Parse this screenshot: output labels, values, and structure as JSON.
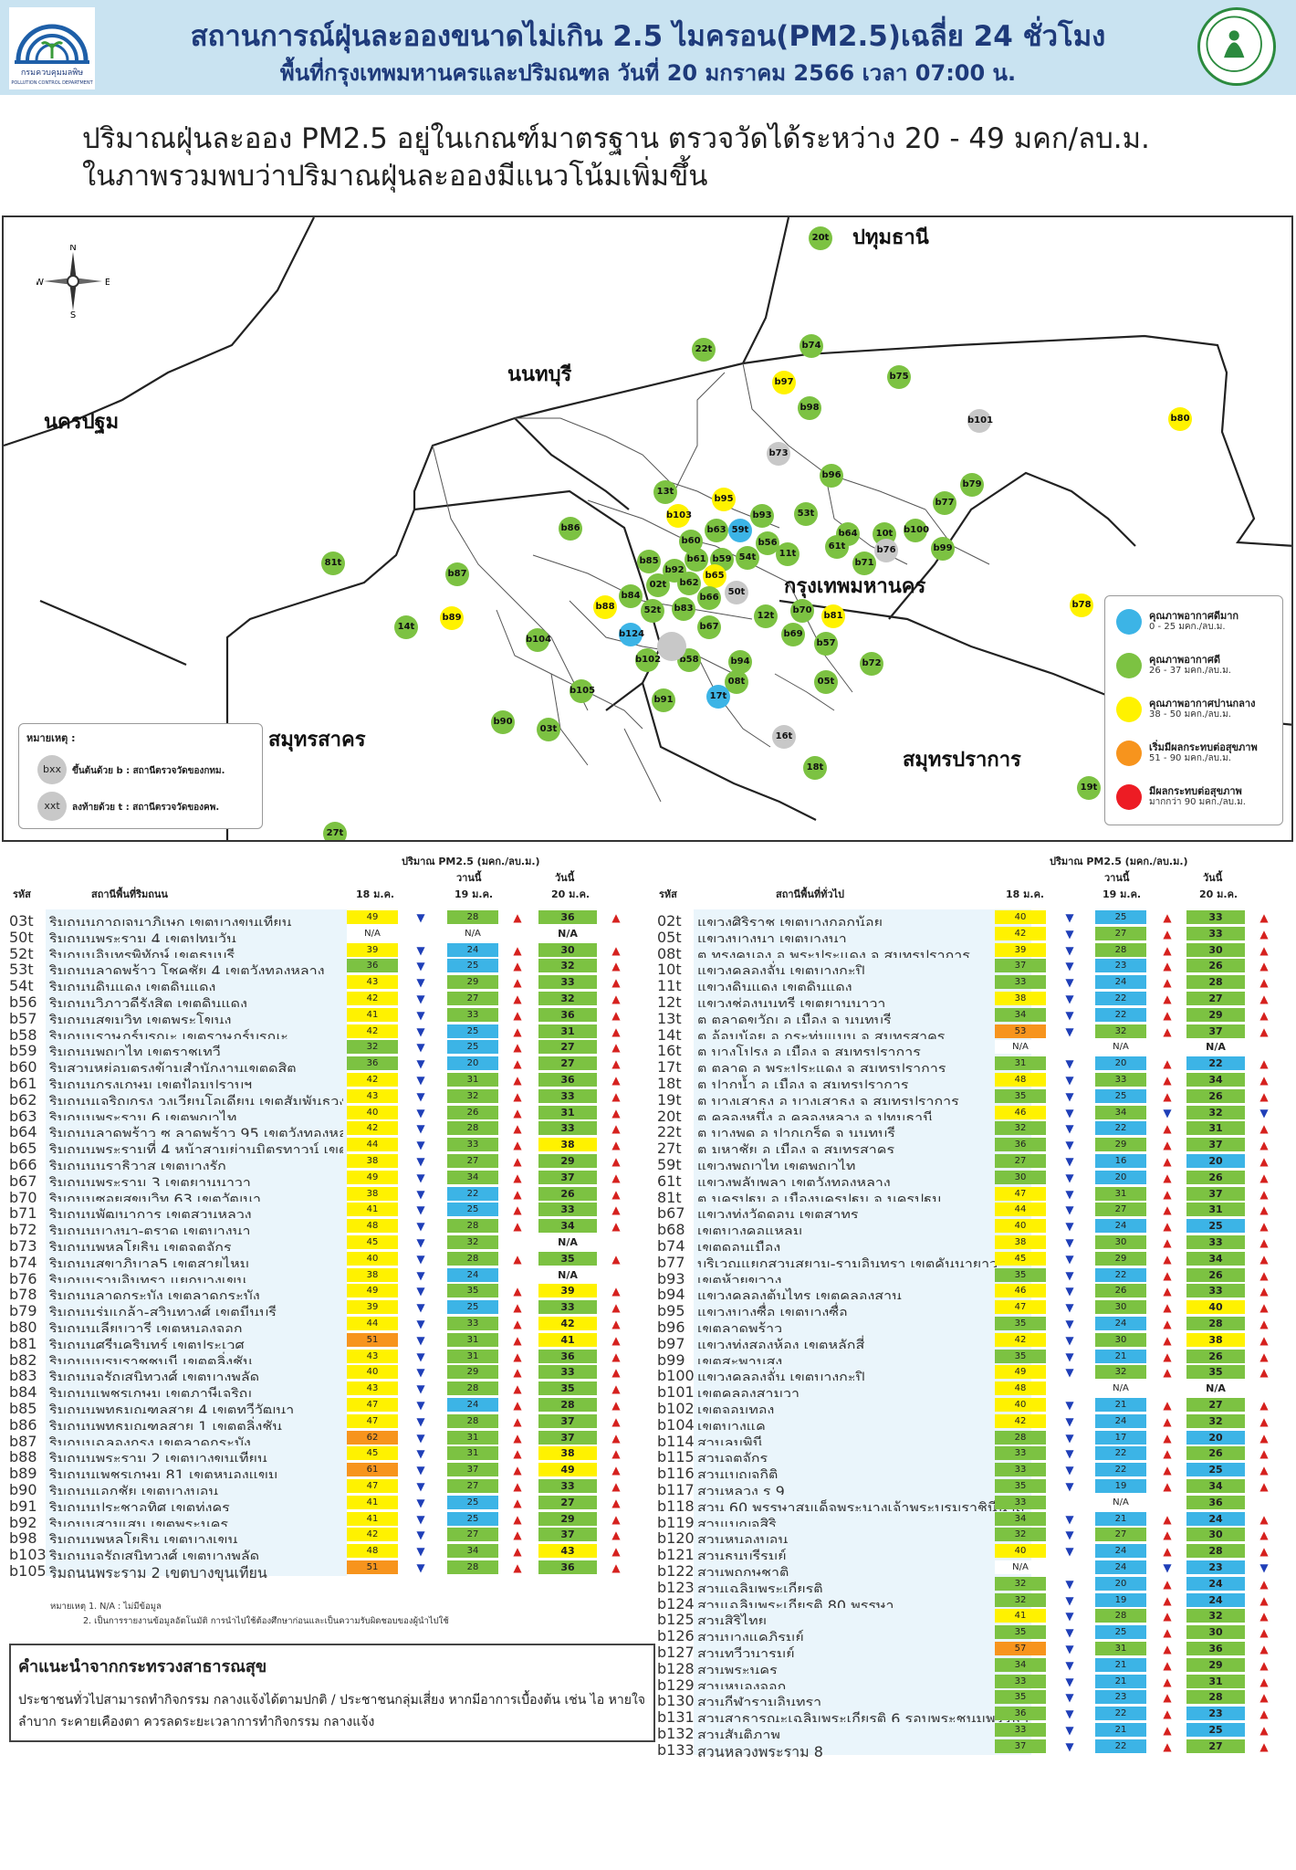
{
  "header": {
    "title": "สถานการณ์ฝุ่นละอองขนาดไม่เกิน 2.5 ไมครอน(PM2.5)เฉลี่ย 24 ชั่วโมง",
    "subtitle": "พื้นที่กรุงเทพมหานครและปริมณฑล วันที่ 20 มกราคม 2566 เวลา 07:00 น.",
    "logo_left_text": "กรมควบคุมมลพิษ",
    "logo_left_sub": "POLLUTION CONTROL DEPARTMENT"
  },
  "summary": {
    "line1": "ปริมาณฝุ่นละออง PM2.5 อยู่ในเกณฑ์มาตรฐาน ตรวจวัดได้ระหว่าง 20 - 49 มคก/ลบ.ม.",
    "line2": "ในภาพรวมพบว่าปริมาณฝุ่นละอองมีแนวโน้มเพิ่มขึ้น"
  },
  "map": {
    "provinces": [
      "ปทุมธานี",
      "นนทบุรี",
      "นครปฐม",
      "กรุงเทพมหานคร",
      "สมุทรสาคร",
      "สมุทรปราการ"
    ],
    "compass": {
      "n": "N",
      "s": "S",
      "e": "E",
      "w": "W"
    },
    "colors": {
      "blue": "#3cb4e6",
      "green": "#7cc242",
      "yellow": "#fff200",
      "orange": "#f7941d",
      "red": "#ed1c24",
      "gray": "#c8c8c8"
    },
    "markers": [
      {
        "id": "20t",
        "c": "green"
      },
      {
        "id": "22t",
        "c": "green"
      },
      {
        "id": "b74",
        "c": "green"
      },
      {
        "id": "b97",
        "c": "yellow"
      },
      {
        "id": "b98",
        "c": "green"
      },
      {
        "id": "b75",
        "c": "green"
      },
      {
        "id": "b101",
        "c": "gray"
      },
      {
        "id": "b80",
        "c": "yellow"
      },
      {
        "id": "b73",
        "c": "gray"
      },
      {
        "id": "b96",
        "c": "green"
      },
      {
        "id": "13t",
        "c": "green"
      },
      {
        "id": "b95",
        "c": "yellow"
      },
      {
        "id": "b77",
        "c": "green"
      },
      {
        "id": "b79",
        "c": "green"
      },
      {
        "id": "b103",
        "c": "yellow"
      },
      {
        "id": "b93",
        "c": "green"
      },
      {
        "id": "53t",
        "c": "green"
      },
      {
        "id": "b63",
        "c": "green"
      },
      {
        "id": "59t",
        "c": "blue"
      },
      {
        "id": "b60",
        "c": "green"
      },
      {
        "id": "b56",
        "c": "green"
      },
      {
        "id": "b64",
        "c": "green"
      },
      {
        "id": "10t",
        "c": "green"
      },
      {
        "id": "b100",
        "c": "green"
      },
      {
        "id": "b86",
        "c": "green"
      },
      {
        "id": "61t",
        "c": "green"
      },
      {
        "id": "b76",
        "c": "gray"
      },
      {
        "id": "b99",
        "c": "green"
      },
      {
        "id": "11t",
        "c": "green"
      },
      {
        "id": "b61",
        "c": "green"
      },
      {
        "id": "b59",
        "c": "green"
      },
      {
        "id": "54t",
        "c": "green"
      },
      {
        "id": "b71",
        "c": "green"
      },
      {
        "id": "81t",
        "c": "green"
      },
      {
        "id": "b85",
        "c": "green"
      },
      {
        "id": "b92",
        "c": "green"
      },
      {
        "id": "b87",
        "c": "green"
      },
      {
        "id": "b65",
        "c": "yellow"
      },
      {
        "id": "b62",
        "c": "green"
      },
      {
        "id": "02t",
        "c": "green"
      },
      {
        "id": "b84",
        "c": "green"
      },
      {
        "id": "b66",
        "c": "green"
      },
      {
        "id": "50t",
        "c": "gray"
      },
      {
        "id": "b88",
        "c": "yellow"
      },
      {
        "id": "52t",
        "c": "green"
      },
      {
        "id": "b83",
        "c": "green"
      },
      {
        "id": "b70",
        "c": "green"
      },
      {
        "id": "b81",
        "c": "yellow"
      },
      {
        "id": "b78",
        "c": "yellow"
      },
      {
        "id": "b89",
        "c": "yellow"
      },
      {
        "id": "14t",
        "c": "green"
      },
      {
        "id": "12t",
        "c": "green"
      },
      {
        "id": "b67",
        "c": "green"
      },
      {
        "id": "b124",
        "c": "blue"
      },
      {
        "id": "b69",
        "c": "green"
      },
      {
        "id": "b57",
        "c": "green"
      },
      {
        "id": "b104",
        "c": "green"
      },
      {
        "id": "b102",
        "c": "green"
      },
      {
        "id": "b58",
        "c": "green"
      },
      {
        "id": "b94",
        "c": "green"
      },
      {
        "id": "b72",
        "c": "green"
      },
      {
        "id": "08t",
        "c": "green"
      },
      {
        "id": "05t",
        "c": "green"
      },
      {
        "id": "b105",
        "c": "green"
      },
      {
        "id": "b91",
        "c": "green"
      },
      {
        "id": "17t",
        "c": "blue"
      },
      {
        "id": "b90",
        "c": "green"
      },
      {
        "id": "03t",
        "c": "green"
      },
      {
        "id": "16t",
        "c": "gray"
      },
      {
        "id": "18t",
        "c": "green"
      },
      {
        "id": "19t",
        "c": "green"
      },
      {
        "id": "27t",
        "c": "green"
      },
      {
        "id": "",
        "c": "gray"
      }
    ],
    "legend": [
      {
        "c": "blue",
        "title": "คุณภาพอากาศดีมาก",
        "range": "0 - 25 มคก./ลบ.ม."
      },
      {
        "c": "green",
        "title": "คุณภาพอากาศดี",
        "range": "26 - 37 มคก./ลบ.ม."
      },
      {
        "c": "yellow",
        "title": "คุณภาพอากาศปานกลาง",
        "range": "38 - 50 มคก./ลบ.ม."
      },
      {
        "c": "orange",
        "title": "เริ่มมีผลกระทบต่อสุขภาพ",
        "range": "51 - 90 มคก./ลบ.ม."
      },
      {
        "c": "red",
        "title": "มีผลกระทบต่อสุขภาพ",
        "range": "มากกว่า 90 มคก./ลบ.ม."
      }
    ],
    "note": {
      "title": "หมายเหตุ :",
      "b": "bxx",
      "b_text": "ขึ้นต้นด้วย b : สถานีตรวจวัดของกทม.",
      "t": "xxt",
      "t_text": "ลงท้ายด้วย t : สถานีตรวจวัดของคพ."
    }
  },
  "tables": {
    "unit": "ปริมาณ PM2.5 (มคก./ลบ.ม.)",
    "yesterday": "วานนี้",
    "today": "วันนี้",
    "col_code": "รหัส",
    "d18": "18 ม.ค.",
    "d19": "19 ม.ค.",
    "d20": "20 ม.ค.",
    "left_title": "สถานีพื้นที่ริมถนน",
    "right_title": "สถานีพื้นที่ทั่วไป",
    "left": [
      [
        "03t",
        "ริมถนนกาญจนาภิเษก เขตบางขุนเทียน",
        "49",
        "28",
        "36"
      ],
      [
        "50t",
        "ริมถนนพระราม 4 เขตปทุมวัน",
        "N/A",
        "N/A",
        "N/A"
      ],
      [
        "52t",
        "ริมถนนอินทรพิทักษ์ เขตธนบุรี",
        "39",
        "24",
        "30"
      ],
      [
        "53t",
        "ริมถนนลาดพร้าว โชคชัย 4 เขตวังทองหลาง",
        "36",
        "25",
        "32"
      ],
      [
        "54t",
        "ริมถนนดินแดง เขตดินแดง",
        "43",
        "29",
        "33"
      ],
      [
        "b56",
        "ริมถนนวิภาวดีรังสิต เขตดินแดง",
        "42",
        "27",
        "32"
      ],
      [
        "b57",
        "ริมถนนสุขุมวิท เขตพระโขนง",
        "41",
        "33",
        "36"
      ],
      [
        "b58",
        "ริมถนนราษฎร์บูรณะ เขตราษฎร์บูรณะ",
        "42",
        "25",
        "31"
      ],
      [
        "b59",
        "ริมถนนพญาไท เขตราชเทวี",
        "32",
        "25",
        "27"
      ],
      [
        "b60",
        "ริมสวนหย่อมตรงข้ามสำนักงานเขตดุสิต",
        "36",
        "20",
        "27"
      ],
      [
        "b61",
        "ริมถนนกรุงเกษม เขตป้อมปราบฯ",
        "42",
        "31",
        "36"
      ],
      [
        "b62",
        "ริมถนนเจริญกรุง วงเวียนโอเดียน เขตสัมพันธวงศ์",
        "43",
        "32",
        "33"
      ],
      [
        "b63",
        "ริมถนนพระราม 6 เขตพญาไท",
        "40",
        "26",
        "31"
      ],
      [
        "b64",
        "ริมถนนลาดพร้าว ซ.ลาดพร้าว 95 เขตวังทองหลาง",
        "42",
        "28",
        "33"
      ],
      [
        "b65",
        "ริมถนนพระรามที่ 4 หน้าสามย่านมิตรทาวน์ เขตปทุมวัน",
        "44",
        "33",
        "38"
      ],
      [
        "b66",
        "ริมถนนนราธิวาส เขตบางรัก",
        "38",
        "27",
        "29"
      ],
      [
        "b67",
        "ริมถนนพระราม 3 เขตยานนาวา",
        "49",
        "34",
        "37"
      ],
      [
        "b70",
        "ริมถนนซอยสุขุมวิท 63 เขตวัฒนา",
        "38",
        "22",
        "26"
      ],
      [
        "b71",
        "ริมถนนพัฒนาการ เขตสวนหลวง",
        "41",
        "25",
        "33"
      ],
      [
        "b72",
        "ริมถนนบางนา-ตราด เขตบางนา",
        "48",
        "28",
        "34"
      ],
      [
        "b73",
        "ริมถนนพหลโยธิน เขตจตุจักร",
        "45",
        "32",
        "N/A"
      ],
      [
        "b74",
        "ริมถนนสุขาภิบาล5 เขตสายไหม",
        "40",
        "28",
        "35"
      ],
      [
        "b76",
        "ริมถนนรามอินทรา แยกบางเขน",
        "38",
        "24",
        "N/A"
      ],
      [
        "b78",
        "ริมถนนลาดกระบัง เขตลาดกระบัง",
        "49",
        "35",
        "39"
      ],
      [
        "b79",
        "ริมถนนร่มเกล้า-สุวินทวงศ์ เขตมีนบุรี",
        "39",
        "25",
        "33"
      ],
      [
        "b80",
        "ริมถนนเลียบวารี เขตหนองจอก",
        "44",
        "33",
        "42"
      ],
      [
        "b81",
        "ริมถนนศรีนครินทร์ เขตประเวศ",
        "51",
        "31",
        "41"
      ],
      [
        "b82",
        "ริมถนนบรมราชชนนี เขตตลิ่งชัน",
        "43",
        "31",
        "36"
      ],
      [
        "b83",
        "ริมถนนจรัญสนิทวงศ์ เขตบางพลัด",
        "40",
        "29",
        "33"
      ],
      [
        "b84",
        "ริมถนนเพชรเกษม เขตภาษีเจริญ",
        "43",
        "28",
        "35"
      ],
      [
        "b85",
        "ริมถนนพุทธมณฑลสาย 4 เขตทวีวัฒนา",
        "47",
        "24",
        "28"
      ],
      [
        "b86",
        "ริมถนนพุทธมณฑลสาย 1 เขตตลิ่งชัน",
        "47",
        "28",
        "37"
      ],
      [
        "b87",
        "ริมถนนฉลองกรุง เขตลาดกระบัง",
        "62",
        "31",
        "37"
      ],
      [
        "b88",
        "ริมถนนพระราม 2 เขตบางขุนเทียน",
        "45",
        "31",
        "38"
      ],
      [
        "b89",
        "ริมถนนเพชรเกษม 81 เขตหนองแขม",
        "61",
        "37",
        "49"
      ],
      [
        "b90",
        "ริมถนนเอกชัย เขตบางบอน",
        "47",
        "27",
        "33"
      ],
      [
        "b91",
        "ริมถนนประชาอุทิศ เขตทุ่งครุ",
        "41",
        "25",
        "27"
      ],
      [
        "b92",
        "ริมถนนสามเสน เขตพระนคร",
        "41",
        "25",
        "29"
      ],
      [
        "b98",
        "ริมถนนพหลโยธิน เขตบางเขน",
        "42",
        "27",
        "37"
      ],
      [
        "b103",
        "ริมถนนจรัญสนิทวงศ์ เขตบางพลัด",
        "48",
        "34",
        "43"
      ],
      [
        "b105",
        "ริมถนนพระราม 2 เขตบางขุนเทียน",
        "51",
        "28",
        "36"
      ]
    ],
    "right": [
      [
        "02t",
        "แขวงศิริราช เขตบางกอกน้อย",
        "40",
        "25",
        "33"
      ],
      [
        "05t",
        "แขวงบางนา เขตบางนา",
        "42",
        "27",
        "33"
      ],
      [
        "08t",
        "ต.ทรงคนอง อ.พระประแดง จ.สมุทรปราการ",
        "39",
        "28",
        "30"
      ],
      [
        "10t",
        "แขวงคลองจั่น เขตบางกะปิ",
        "37",
        "23",
        "26"
      ],
      [
        "11t",
        "แขวงดินแดง เขตดินแดง",
        "33",
        "24",
        "28"
      ],
      [
        "12t",
        "แขวงช่องนนทรี เขตยานนาวา",
        "38",
        "22",
        "27"
      ],
      [
        "13t",
        "ต.ตลาดขวัญ อ.เมือง จ.นนทบุรี",
        "34",
        "22",
        "29"
      ],
      [
        "14t",
        "ต.อ้อมน้อย อ.กระทุ่มแบน จ.สมุทรสาคร",
        "53",
        "32",
        "37"
      ],
      [
        "16t",
        "ต.บางโปรง อ.เมือง จ.สมุทรปราการ",
        "N/A",
        "N/A",
        "N/A"
      ],
      [
        "17t",
        "ต.ตลาด อ.พระประแดง จ.สมุทรปราการ",
        "31",
        "20",
        "22"
      ],
      [
        "18t",
        "ต.ปากน้ำ อ.เมือง จ.สมุทรปราการ",
        "48",
        "33",
        "34"
      ],
      [
        "19t",
        "ต.บางเสาธง อ.บางเสาธง จ.สมุทรปราการ",
        "35",
        "25",
        "26"
      ],
      [
        "20t",
        "ต.คลองหนึ่ง อ.คลองหลวง จ.ปทุมธานี",
        "46",
        "34",
        "32"
      ],
      [
        "22t",
        "ต.บางพูด อ.ปากเกร็ด จ.นนทบุรี",
        "32",
        "22",
        "31"
      ],
      [
        "27t",
        "ต.มหาชัย อ.เมือง จ.สมุทรสาคร",
        "36",
        "29",
        "37"
      ],
      [
        "59t",
        "แขวงพญาไท เขตพญาไท",
        "27",
        "16",
        "20"
      ],
      [
        "61t",
        "แขวงพลับพลา เขตวังทองหลาง",
        "30",
        "20",
        "26"
      ],
      [
        "81t",
        "ต.นครปฐม อ.เมืองนครปฐม จ.นครปฐม",
        "47",
        "31",
        "37"
      ],
      [
        "b67",
        "แขวงทุ่งวัดดอน เขตสาทร",
        "44",
        "27",
        "31"
      ],
      [
        "b68",
        "เขตบางคอแหลม",
        "40",
        "24",
        "25"
      ],
      [
        "b74",
        "เขตดอนเมือง",
        "38",
        "30",
        "33"
      ],
      [
        "b77",
        "บริเวณแยกสวนสยาม-รามอินทรา เขตคันนายาว",
        "45",
        "29",
        "34"
      ],
      [
        "b93",
        "เขตห้วยขวาง",
        "35",
        "22",
        "26"
      ],
      [
        "b94",
        "แขวงคลองต้นไทร เขตคลองสาน",
        "46",
        "26",
        "33"
      ],
      [
        "b95",
        "แขวงบางซื่อ เขตบางซื่อ",
        "47",
        "30",
        "40"
      ],
      [
        "b96",
        "เขตลาดพร้าว",
        "35",
        "24",
        "28"
      ],
      [
        "b97",
        "แขวงทุ่งสองห้อง เขตหลักสี่",
        "42",
        "30",
        "38"
      ],
      [
        "b99",
        "เขตสะพานสูง",
        "35",
        "21",
        "26"
      ],
      [
        "b100",
        "แขวงคลองจั่น เขตบางกะปิ",
        "49",
        "32",
        "35"
      ],
      [
        "b101",
        "เขตคลองสามวา",
        "48",
        "N/A",
        "N/A"
      ],
      [
        "b102",
        "เขตจอมทอง",
        "40",
        "21",
        "27"
      ],
      [
        "b104",
        "เขตบางแค",
        "42",
        "24",
        "32"
      ],
      [
        "b114",
        "สวนลุมพินี",
        "28",
        "17",
        "20"
      ],
      [
        "b115",
        "สวนจตุจักร",
        "33",
        "22",
        "26"
      ],
      [
        "b116",
        "สวนเบญจกิติ",
        "33",
        "22",
        "25"
      ],
      [
        "b117",
        "สวนหลวง ร.9",
        "35",
        "19",
        "34"
      ],
      [
        "b118",
        "สวน 60 พรรษาสมเด็จพระนางเจ้าพระบรมราชินีนาถ",
        "33",
        "N/A",
        "36"
      ],
      [
        "b119",
        "สวนเบญจสิริ",
        "34",
        "21",
        "24"
      ],
      [
        "b120",
        "สวนหนองบอน",
        "32",
        "27",
        "30"
      ],
      [
        "b121",
        "สวนธนบุรีรมย์",
        "40",
        "24",
        "28"
      ],
      [
        "b122",
        "สวนพฤกษชาติ",
        "N/A",
        "24",
        "23"
      ],
      [
        "b123",
        "สวนเฉลิมพระเกียรติ",
        "32",
        "20",
        "24"
      ],
      [
        "b124",
        "สวนเฉลิมพระเกียรติ 80 พรรษา",
        "32",
        "19",
        "24"
      ],
      [
        "b125",
        "สวนสิริไทย",
        "41",
        "28",
        "32"
      ],
      [
        "b126",
        "สวนบางแคภิรมย์",
        "35",
        "25",
        "30"
      ],
      [
        "b127",
        "สวนทวีวนารมย์",
        "57",
        "31",
        "36"
      ],
      [
        "b128",
        "สวนพระนคร",
        "34",
        "21",
        "29"
      ],
      [
        "b129",
        "สวนหนองจอก",
        "33",
        "21",
        "31"
      ],
      [
        "b130",
        "สวนกีฬารามอินทรา",
        "35",
        "23",
        "28"
      ],
      [
        "b131",
        "สวนสาธารณะเฉลิมพระเกียรติ 6 รอบพระชนมพรรษา",
        "36",
        "22",
        "23"
      ],
      [
        "b132",
        "สวนสันติภาพ",
        "33",
        "21",
        "25"
      ],
      [
        "b133",
        "สวนหลวงพระราม 8",
        "37",
        "22",
        "27"
      ]
    ],
    "footnote1": "หมายเหตุ 1. N/A : ไม่มีข้อมูล",
    "footnote2": "2. เป็นการรายงานข้อมูลอัตโนมัติ การนำไปใช้ต้องศึกษาก่อนและเป็นความรับผิดชอบของผู้นำไปใช้"
  },
  "recommendation": {
    "title": "คำแนะนำจากกระทรวงสาธารณสุข",
    "body": "ประชาชนทั่วไปสามารถทำกิจกรรม กลางแจ้งได้ตามปกติ / ประชาชนกลุ่มเสี่ยง หากมีอาการเบื้องต้น เช่น ไอ หายใจลำบาก ระคายเคืองตา ควรลดระยะเวลาการทำกิจกรรม กลางแจ้ง"
  }
}
